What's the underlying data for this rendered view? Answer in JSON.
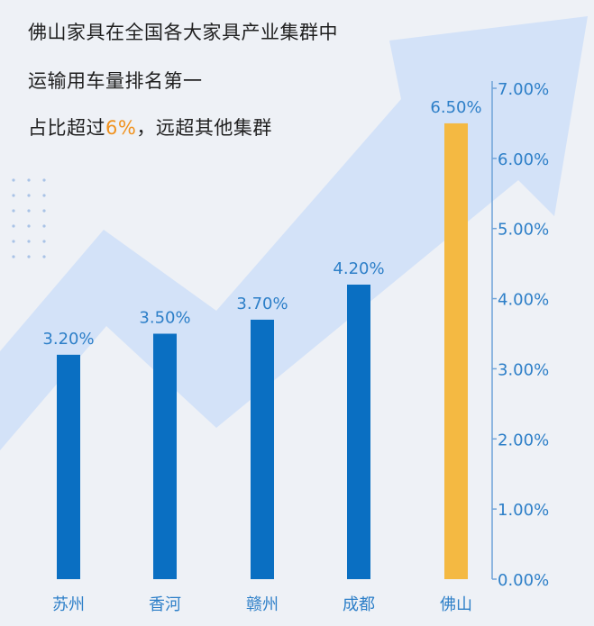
{
  "headline": {
    "line1": "佛山家具在全国各大家具产业集群中",
    "line2": "运输用车量排名第一",
    "line3_before": "占比超过",
    "line3_highlight": "6%",
    "line3_after": "，远超其他集群"
  },
  "colors": {
    "bar": "#0a6fc2",
    "highlight_bar": "#f4b942",
    "highlight_text": "#f0921e",
    "label": "#2d7fc8",
    "axis": "#6fa3d8",
    "arrow": "#cfe0f8"
  },
  "chart_data": {
    "type": "bar",
    "categories": [
      "苏州",
      "香河",
      "赣州",
      "成都",
      "佛山"
    ],
    "values": [
      3.2,
      3.5,
      3.7,
      4.2,
      6.5
    ],
    "value_labels": [
      "3.20%",
      "3.50%",
      "3.70%",
      "4.20%",
      "6.50%"
    ],
    "highlight_index": 4,
    "y_axis": {
      "position": "right",
      "min": 0,
      "max": 7,
      "ticks": [
        0,
        1,
        2,
        3,
        4,
        5,
        6,
        7
      ],
      "tick_labels": [
        "0.00%",
        "1.00%",
        "2.00%",
        "3.00%",
        "4.00%",
        "5.00%",
        "6.00%",
        "7.00%"
      ]
    },
    "grid": false,
    "title": "",
    "xlabel": "",
    "ylabel": ""
  }
}
